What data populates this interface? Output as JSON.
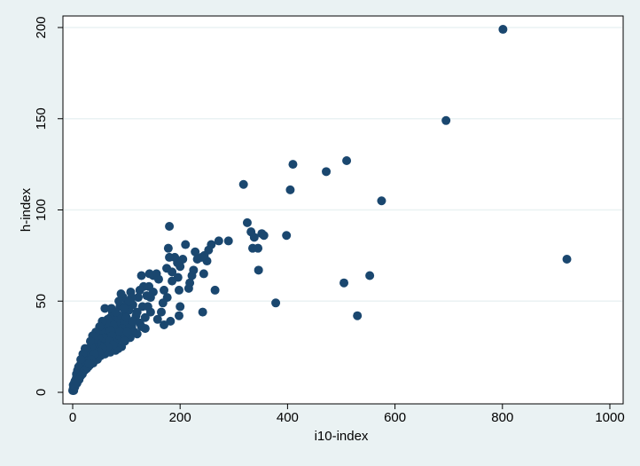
{
  "chart_data": {
    "type": "scatter",
    "title": "",
    "xlabel": "i10-index",
    "ylabel": "h-index",
    "xlim": [
      -10,
      1020
    ],
    "ylim": [
      -5,
      208
    ],
    "xticks": [
      0,
      200,
      400,
      600,
      800,
      1000
    ],
    "yticks": [
      0,
      50,
      100,
      150,
      200
    ],
    "grid": "horizontal",
    "colors": {
      "marker": "#1a476f",
      "background": "#eaf2f3",
      "plot_area": "#ffffff",
      "grid": "#eaf2f3"
    },
    "series": [
      {
        "points": [
          [
            801,
            199
          ],
          [
            695,
            149
          ],
          [
            510,
            127
          ],
          [
            410,
            125
          ],
          [
            472,
            121
          ],
          [
            318,
            114
          ],
          [
            405,
            111
          ],
          [
            575,
            105
          ],
          [
            325,
            93
          ],
          [
            332,
            88
          ],
          [
            338,
            85
          ],
          [
            352,
            87
          ],
          [
            356,
            86
          ],
          [
            398,
            86
          ],
          [
            335,
            79
          ],
          [
            345,
            79
          ],
          [
            346,
            67
          ],
          [
            920,
            73
          ],
          [
            505,
            60
          ],
          [
            553,
            64
          ],
          [
            530,
            42
          ],
          [
            378,
            49
          ],
          [
            265,
            56
          ],
          [
            242,
            44
          ],
          [
            290,
            83
          ],
          [
            272,
            83
          ],
          [
            258,
            81
          ],
          [
            253,
            78
          ],
          [
            250,
            72
          ],
          [
            245,
            75
          ],
          [
            228,
            77
          ],
          [
            232,
            73
          ],
          [
            240,
            74
          ],
          [
            244,
            65
          ],
          [
            225,
            67
          ],
          [
            222,
            64
          ],
          [
            218,
            60
          ],
          [
            216,
            57
          ],
          [
            210,
            81
          ],
          [
            200,
            69
          ],
          [
            205,
            73
          ],
          [
            195,
            71
          ],
          [
            190,
            74
          ],
          [
            185,
            66
          ],
          [
            196,
            63
          ],
          [
            198,
            56
          ],
          [
            200,
            47
          ],
          [
            198,
            42
          ],
          [
            180,
            91
          ],
          [
            178,
            79
          ],
          [
            180,
            74
          ],
          [
            175,
            68
          ],
          [
            185,
            61
          ],
          [
            176,
            52
          ],
          [
            182,
            39
          ],
          [
            170,
            56
          ],
          [
            168,
            49
          ],
          [
            160,
            62
          ],
          [
            156,
            65
          ],
          [
            150,
            64
          ],
          [
            143,
            65
          ],
          [
            128,
            64
          ],
          [
            142,
            58
          ],
          [
            150,
            55
          ],
          [
            138,
            53
          ],
          [
            132,
            58
          ],
          [
            125,
            56
          ],
          [
            145,
            44
          ],
          [
            158,
            40
          ],
          [
            165,
            44
          ],
          [
            170,
            37
          ],
          [
            122,
            52
          ],
          [
            120,
            44
          ],
          [
            116,
            40
          ],
          [
            110,
            36
          ],
          [
            103,
            37
          ],
          [
            100,
            48
          ],
          [
            95,
            30
          ],
          [
            90,
            40
          ],
          [
            108,
            55
          ],
          [
            112,
            48
          ],
          [
            118,
            42
          ],
          [
            98,
            44
          ],
          [
            94,
            52
          ],
          [
            90,
            54
          ],
          [
            88,
            47
          ],
          [
            86,
            42
          ],
          [
            84,
            38
          ],
          [
            82,
            34
          ],
          [
            80,
            30
          ],
          [
            78,
            35
          ],
          [
            76,
            40
          ],
          [
            74,
            44
          ],
          [
            72,
            46
          ],
          [
            70,
            41
          ],
          [
            68,
            37
          ],
          [
            66,
            33
          ],
          [
            64,
            29
          ],
          [
            62,
            27
          ],
          [
            60,
            46
          ],
          [
            60,
            32
          ],
          [
            58,
            36
          ],
          [
            56,
            33
          ],
          [
            54,
            30
          ],
          [
            52,
            27
          ],
          [
            50,
            31
          ],
          [
            48,
            26
          ],
          [
            46,
            24
          ],
          [
            44,
            22
          ],
          [
            42,
            28
          ],
          [
            40,
            24
          ],
          [
            38,
            21
          ],
          [
            36,
            26
          ],
          [
            34,
            22
          ],
          [
            32,
            19
          ],
          [
            30,
            24
          ],
          [
            28,
            20
          ],
          [
            26,
            18
          ],
          [
            24,
            16
          ],
          [
            22,
            21
          ],
          [
            20,
            17
          ],
          [
            18,
            14
          ],
          [
            16,
            12
          ],
          [
            14,
            15
          ],
          [
            12,
            11
          ],
          [
            10,
            9
          ],
          [
            9,
            12
          ],
          [
            8,
            8
          ],
          [
            7,
            10
          ],
          [
            6,
            7
          ],
          [
            5,
            5
          ],
          [
            4,
            6
          ],
          [
            3,
            4
          ],
          [
            2,
            3
          ],
          [
            1,
            2
          ],
          [
            0,
            1
          ],
          [
            130,
            47
          ],
          [
            135,
            41
          ],
          [
            125,
            38
          ],
          [
            115,
            33
          ],
          [
            105,
            45
          ],
          [
            96,
            39
          ],
          [
            92,
            35
          ],
          [
            86,
            50
          ],
          [
            80,
            44
          ],
          [
            75,
            37
          ],
          [
            70,
            34
          ],
          [
            65,
            40
          ],
          [
            62,
            38
          ],
          [
            58,
            30
          ],
          [
            55,
            39
          ],
          [
            52,
            34
          ],
          [
            50,
            36
          ],
          [
            48,
            30
          ],
          [
            45,
            27
          ],
          [
            43,
            33
          ],
          [
            40,
            29
          ],
          [
            37,
            31
          ],
          [
            35,
            25
          ],
          [
            33,
            28
          ],
          [
            30,
            21
          ],
          [
            27,
            23
          ],
          [
            25,
            20
          ],
          [
            23,
            24
          ],
          [
            21,
            19
          ],
          [
            19,
            21
          ],
          [
            17,
            16
          ],
          [
            15,
            18
          ],
          [
            13,
            13
          ],
          [
            11,
            14
          ],
          [
            9,
            10
          ],
          [
            7,
            8
          ],
          [
            4,
            3
          ],
          [
            2,
            1
          ],
          [
            3,
            5
          ],
          [
            1,
            4
          ],
          [
            110,
            52
          ],
          [
            105,
            50
          ],
          [
            100,
            41
          ],
          [
            95,
            46
          ],
          [
            88,
            33
          ],
          [
            83,
            29
          ],
          [
            78,
            27
          ],
          [
            73,
            31
          ],
          [
            68,
            28
          ],
          [
            63,
            24
          ],
          [
            57,
            22
          ],
          [
            53,
            25
          ],
          [
            47,
            20
          ],
          [
            42,
            19
          ],
          [
            39,
            18
          ],
          [
            36,
            17
          ],
          [
            32,
            15
          ],
          [
            29,
            14
          ],
          [
            26,
            13
          ],
          [
            22,
            12
          ],
          [
            18,
            10
          ],
          [
            15,
            9
          ],
          [
            12,
            7
          ],
          [
            8,
            5
          ],
          [
            145,
            52
          ],
          [
            140,
            47
          ],
          [
            135,
            35
          ],
          [
            128,
            36
          ],
          [
            120,
            32
          ],
          [
            112,
            39
          ],
          [
            107,
            30
          ],
          [
            102,
            33
          ],
          [
            97,
            28
          ],
          [
            91,
            25
          ],
          [
            85,
            24
          ],
          [
            80,
            23
          ],
          [
            75,
            26
          ],
          [
            70,
            22
          ],
          [
            65,
            25
          ],
          [
            60,
            21
          ],
          [
            56,
            24
          ],
          [
            52,
            20
          ],
          [
            49,
            22
          ],
          [
            46,
            18
          ],
          [
            41,
            21
          ],
          [
            38,
            16
          ],
          [
            34,
            18
          ],
          [
            31,
            16
          ]
        ]
      }
    ]
  }
}
